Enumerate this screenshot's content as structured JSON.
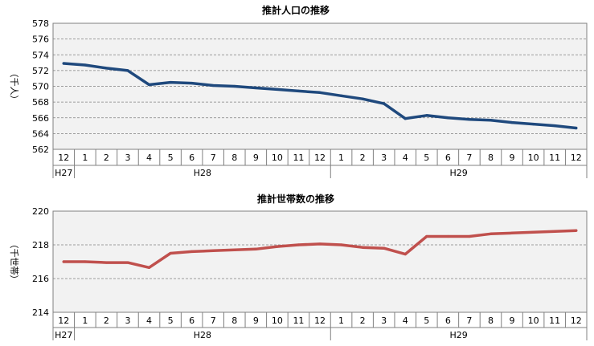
{
  "chart_data": [
    {
      "type": "line",
      "title": "推計人口の推移",
      "ylabel": "（千人）",
      "ylim": [
        562,
        578
      ],
      "yticks": [
        562,
        564,
        566,
        568,
        570,
        572,
        574,
        576,
        578
      ],
      "grid": true,
      "categories": [
        "12",
        "1",
        "2",
        "3",
        "4",
        "5",
        "6",
        "7",
        "8",
        "9",
        "10",
        "11",
        "12",
        "1",
        "2",
        "3",
        "4",
        "5",
        "6",
        "7",
        "8",
        "9",
        "10",
        "11",
        "12"
      ],
      "year_groups": [
        {
          "label": "H27",
          "count": 1
        },
        {
          "label": "H28",
          "count": 12
        },
        {
          "label": "H29",
          "count": 12
        }
      ],
      "series": [
        {
          "color": "#1f497d",
          "values": [
            572.9,
            572.7,
            572.3,
            572.0,
            570.2,
            570.5,
            570.4,
            570.1,
            570.0,
            569.8,
            569.6,
            569.4,
            569.2,
            568.8,
            568.4,
            567.8,
            565.9,
            566.3,
            566.0,
            565.8,
            565.7,
            565.4,
            565.2,
            565.0,
            564.7
          ]
        }
      ]
    },
    {
      "type": "line",
      "title": "推計世帯数の推移",
      "ylabel": "（千世帯）",
      "ylim": [
        214,
        220
      ],
      "yticks": [
        214,
        216,
        218,
        220
      ],
      "grid": true,
      "categories": [
        "12",
        "1",
        "2",
        "3",
        "4",
        "5",
        "6",
        "7",
        "8",
        "9",
        "10",
        "11",
        "12",
        "1",
        "2",
        "3",
        "4",
        "5",
        "6",
        "7",
        "8",
        "9",
        "10",
        "11",
        "12"
      ],
      "year_groups": [
        {
          "label": "H27",
          "count": 1
        },
        {
          "label": "H28",
          "count": 12
        },
        {
          "label": "H29",
          "count": 12
        }
      ],
      "series": [
        {
          "color": "#c0504d",
          "values": [
            217.0,
            217.0,
            216.95,
            216.95,
            216.65,
            217.5,
            217.6,
            217.65,
            217.7,
            217.75,
            217.9,
            218.0,
            218.05,
            218.0,
            217.85,
            217.8,
            217.45,
            218.5,
            218.5,
            218.5,
            218.65,
            218.7,
            218.75,
            218.8,
            218.85
          ]
        }
      ]
    }
  ]
}
